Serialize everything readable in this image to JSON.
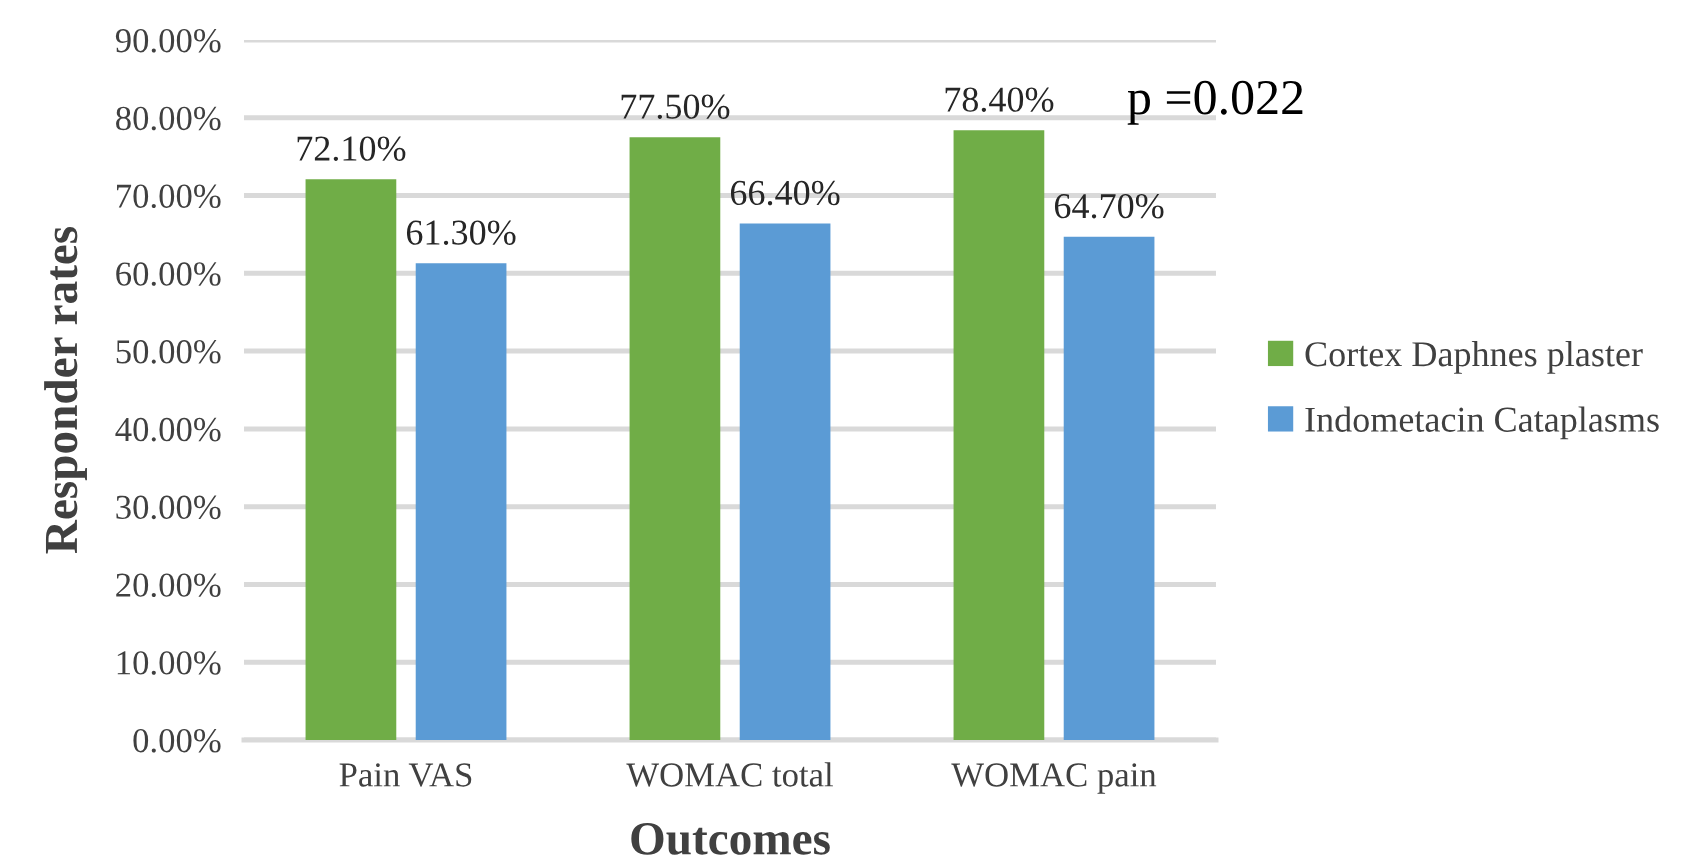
{
  "chart_data": {
    "type": "bar",
    "xlabel": "Outcomes",
    "ylabel": "Responder rates",
    "categories": [
      "Pain VAS",
      "WOMAC total",
      "WOMAC pain"
    ],
    "series": [
      {
        "name": "Cortex Daphnes plaster",
        "color": "#70ad47",
        "values": [
          72.1,
          77.5,
          78.4
        ],
        "value_labels": [
          "72.10%",
          "77.50%",
          "78.40%"
        ]
      },
      {
        "name": "Indometacin Cataplasms",
        "color": "#5b9bd5",
        "values": [
          61.3,
          66.4,
          64.7
        ],
        "value_labels": [
          "61.30%",
          "66.40%",
          "64.70%"
        ]
      }
    ],
    "ylim": [
      0,
      90
    ],
    "yticks": [
      {
        "value": 0,
        "label": "0.00%"
      },
      {
        "value": 10,
        "label": "10.00%"
      },
      {
        "value": 20,
        "label": "20.00%"
      },
      {
        "value": 30,
        "label": "30.00%"
      },
      {
        "value": 40,
        "label": "40.00%"
      },
      {
        "value": 50,
        "label": "50.00%"
      },
      {
        "value": 60,
        "label": "60.00%"
      },
      {
        "value": 70,
        "label": "70.00%"
      },
      {
        "value": 80,
        "label": "80.00%"
      },
      {
        "value": 90,
        "label": "90.00%"
      }
    ],
    "annotations": [
      {
        "text": "p =0.022",
        "x": "WOMAC pain",
        "y": 78.4
      }
    ],
    "grid": "y",
    "legend": "right"
  }
}
